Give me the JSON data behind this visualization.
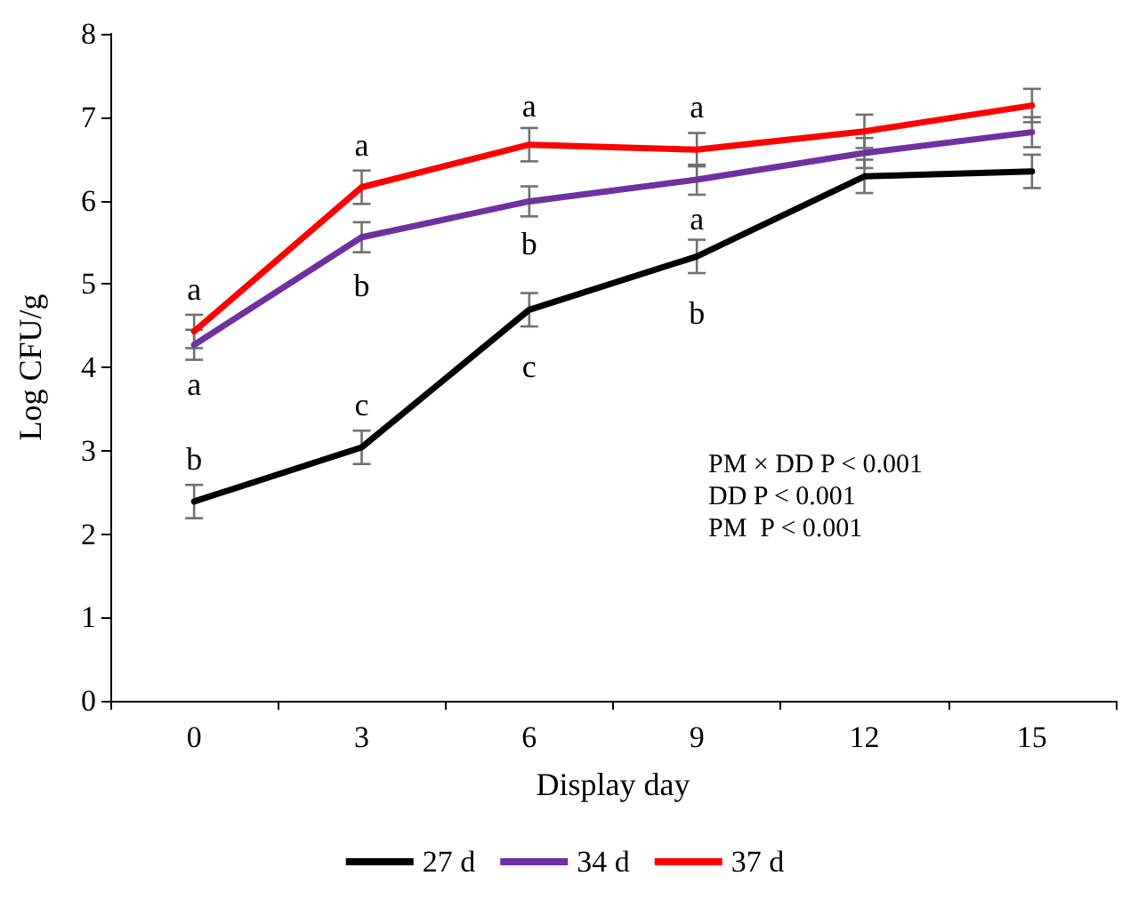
{
  "chart_data": {
    "type": "line",
    "xlabel": "Display day",
    "ylabel": "Log CFU/g",
    "categories": [
      "0",
      "3",
      "6",
      "9",
      "12",
      "15"
    ],
    "ylim": [
      0,
      8
    ],
    "yticks": [
      0,
      1,
      2,
      3,
      4,
      5,
      6,
      7,
      8
    ],
    "grid": false,
    "legend": "bottom",
    "marker": "none",
    "line_style": "solid",
    "series": [
      {
        "name": "27 d",
        "color": "#000000",
        "values": [
          2.39,
          3.04,
          4.69,
          5.33,
          6.29,
          6.35
        ],
        "errors": [
          0.2,
          0.2,
          0.2,
          0.2,
          0.2,
          0.2
        ]
      },
      {
        "name": "34 d",
        "color": "#7030a0",
        "values": [
          4.27,
          5.56,
          5.99,
          6.25,
          6.57,
          6.82
        ],
        "errors": [
          0.18,
          0.18,
          0.18,
          0.18,
          0.18,
          0.18
        ]
      },
      {
        "name": "37 d",
        "color": "#ff0000",
        "values": [
          4.43,
          6.16,
          6.67,
          6.61,
          6.83,
          7.14
        ],
        "errors": [
          0.2,
          0.2,
          0.2,
          0.2,
          0.2,
          0.2
        ]
      }
    ],
    "annotations": [
      "a",
      "a",
      "b",
      "a",
      "b",
      "c",
      "a",
      "b",
      "c",
      "a",
      "a",
      "b",
      "PM × DD P < 0.001",
      "DD P < 0.001",
      "PM  P < 0.001"
    ]
  }
}
